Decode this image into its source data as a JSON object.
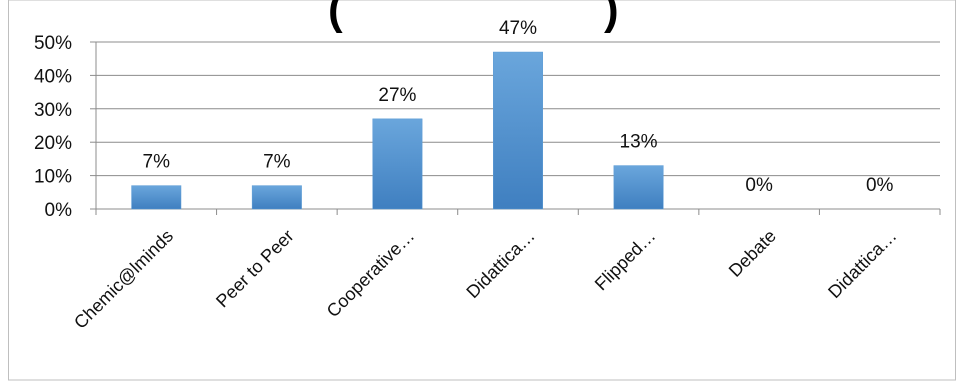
{
  "chart_data": {
    "type": "bar",
    "title": "(",
    "title_right": ")",
    "categories": [
      "Chemic@lminds",
      "Peer to Peer",
      "Cooperative…",
      "Didattica…",
      "Flipped…",
      "Debate",
      "Didattica…"
    ],
    "values": [
      7,
      7,
      27,
      47,
      13,
      0,
      0
    ],
    "data_labels": [
      "7%",
      "7%",
      "27%",
      "47%",
      "13%",
      "0%",
      "0%"
    ],
    "y_ticks": [
      0,
      10,
      20,
      30,
      40,
      50
    ],
    "y_tick_labels": [
      "0%",
      "10%",
      "20%",
      "30%",
      "40%",
      "50%"
    ],
    "ylim": [
      0,
      50
    ],
    "grid": true,
    "legend": "none",
    "colors": {
      "bar": "#5b9bd5",
      "bar_dark": "#4a86c4",
      "grid": "#8c8c8c",
      "text": "#111111"
    }
  }
}
